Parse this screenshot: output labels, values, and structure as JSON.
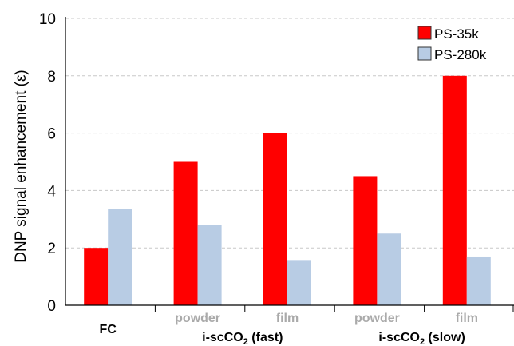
{
  "chart_data": {
    "type": "bar",
    "ylabel": "DNP signal enhancement (ε)",
    "ylim": [
      0,
      10
    ],
    "yticks": [
      0,
      2,
      4,
      6,
      8,
      10
    ],
    "grid": true,
    "legend_position": "top-right",
    "categories": [
      "FC",
      "powder",
      "film",
      "powder",
      "film"
    ],
    "groups": [
      {
        "label": "FC",
        "span": [
          0,
          0
        ]
      },
      {
        "label_main": "i-scCO",
        "label_sub": "2",
        "label_tail": " (fast)",
        "span": [
          1,
          2
        ]
      },
      {
        "label_main": "i-scCO",
        "label_sub": "2",
        "label_tail": " (slow)",
        "span": [
          3,
          4
        ]
      }
    ],
    "series": [
      {
        "name": "PS-35k",
        "color": "#ff0000",
        "values": [
          2.0,
          5.0,
          6.0,
          4.5,
          8.0
        ]
      },
      {
        "name": "PS-280k",
        "color": "#b8cce4",
        "values": [
          3.35,
          2.8,
          1.55,
          2.5,
          1.7
        ]
      }
    ]
  }
}
